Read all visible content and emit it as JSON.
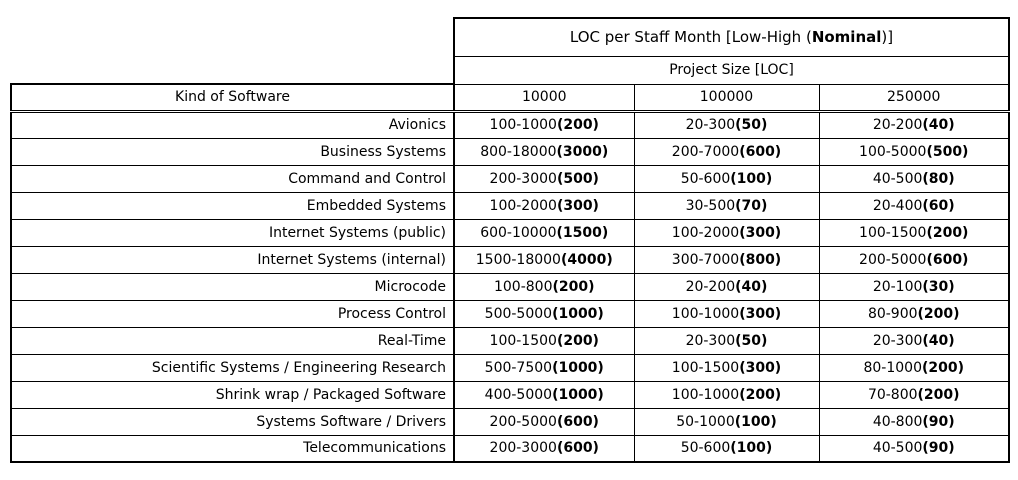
{
  "table": {
    "title_prefix": "LOC per Staff Month [Low-High (",
    "title_bold": "Nominal",
    "title_suffix": ")]",
    "subtitle": "Project Size [LOC]",
    "row_header": "Kind of Software",
    "columns": [
      "10000",
      "100000",
      "250000"
    ],
    "rows": [
      {
        "label": "Avionics",
        "cells": [
          {
            "range": "100-1000",
            "nominal": "200"
          },
          {
            "range": "20-300",
            "nominal": "50"
          },
          {
            "range": "20-200",
            "nominal": "40"
          }
        ]
      },
      {
        "label": "Business Systems",
        "cells": [
          {
            "range": "800-18000",
            "nominal": "3000"
          },
          {
            "range": "200-7000",
            "nominal": "600"
          },
          {
            "range": "100-5000",
            "nominal": "500"
          }
        ]
      },
      {
        "label": "Command and Control",
        "cells": [
          {
            "range": "200-3000",
            "nominal": "500"
          },
          {
            "range": "50-600",
            "nominal": "100"
          },
          {
            "range": "40-500",
            "nominal": "80"
          }
        ]
      },
      {
        "label": "Embedded Systems",
        "cells": [
          {
            "range": "100-2000",
            "nominal": "300"
          },
          {
            "range": "30-500",
            "nominal": "70"
          },
          {
            "range": "20-400",
            "nominal": "60"
          }
        ]
      },
      {
        "label": "Internet Systems (public)",
        "cells": [
          {
            "range": "600-10000",
            "nominal": "1500"
          },
          {
            "range": "100-2000",
            "nominal": "300"
          },
          {
            "range": "100-1500",
            "nominal": "200"
          }
        ]
      },
      {
        "label": "Internet Systems (internal)",
        "cells": [
          {
            "range": "1500-18000",
            "nominal": "4000"
          },
          {
            "range": "300-7000",
            "nominal": "800"
          },
          {
            "range": "200-5000",
            "nominal": "600"
          }
        ]
      },
      {
        "label": "Microcode",
        "cells": [
          {
            "range": "100-800",
            "nominal": "200"
          },
          {
            "range": "20-200",
            "nominal": "40"
          },
          {
            "range": "20-100",
            "nominal": "30"
          }
        ]
      },
      {
        "label": "Process Control",
        "cells": [
          {
            "range": "500-5000",
            "nominal": "1000"
          },
          {
            "range": "100-1000",
            "nominal": "300"
          },
          {
            "range": "80-900",
            "nominal": "200"
          }
        ]
      },
      {
        "label": "Real-Time",
        "cells": [
          {
            "range": "100-1500",
            "nominal": "200"
          },
          {
            "range": "20-300",
            "nominal": "50"
          },
          {
            "range": "20-300",
            "nominal": "40"
          }
        ]
      },
      {
        "label": "Scientific Systems / Engineering Research",
        "cells": [
          {
            "range": "500-7500",
            "nominal": "1000"
          },
          {
            "range": "100-1500",
            "nominal": "300"
          },
          {
            "range": "80-1000",
            "nominal": "200"
          }
        ]
      },
      {
        "label": "Shrink wrap / Packaged Software",
        "cells": [
          {
            "range": "400-5000",
            "nominal": "1000"
          },
          {
            "range": "100-1000",
            "nominal": "200"
          },
          {
            "range": "70-800",
            "nominal": "200"
          }
        ]
      },
      {
        "label": "Systems Software / Drivers",
        "cells": [
          {
            "range": "200-5000",
            "nominal": "600"
          },
          {
            "range": "50-1000",
            "nominal": "100"
          },
          {
            "range": "40-800",
            "nominal": "90"
          }
        ]
      },
      {
        "label": "Telecommunications",
        "cells": [
          {
            "range": "200-3000",
            "nominal": "600"
          },
          {
            "range": "50-600",
            "nominal": "100"
          },
          {
            "range": "40-500",
            "nominal": "90"
          }
        ]
      }
    ]
  }
}
